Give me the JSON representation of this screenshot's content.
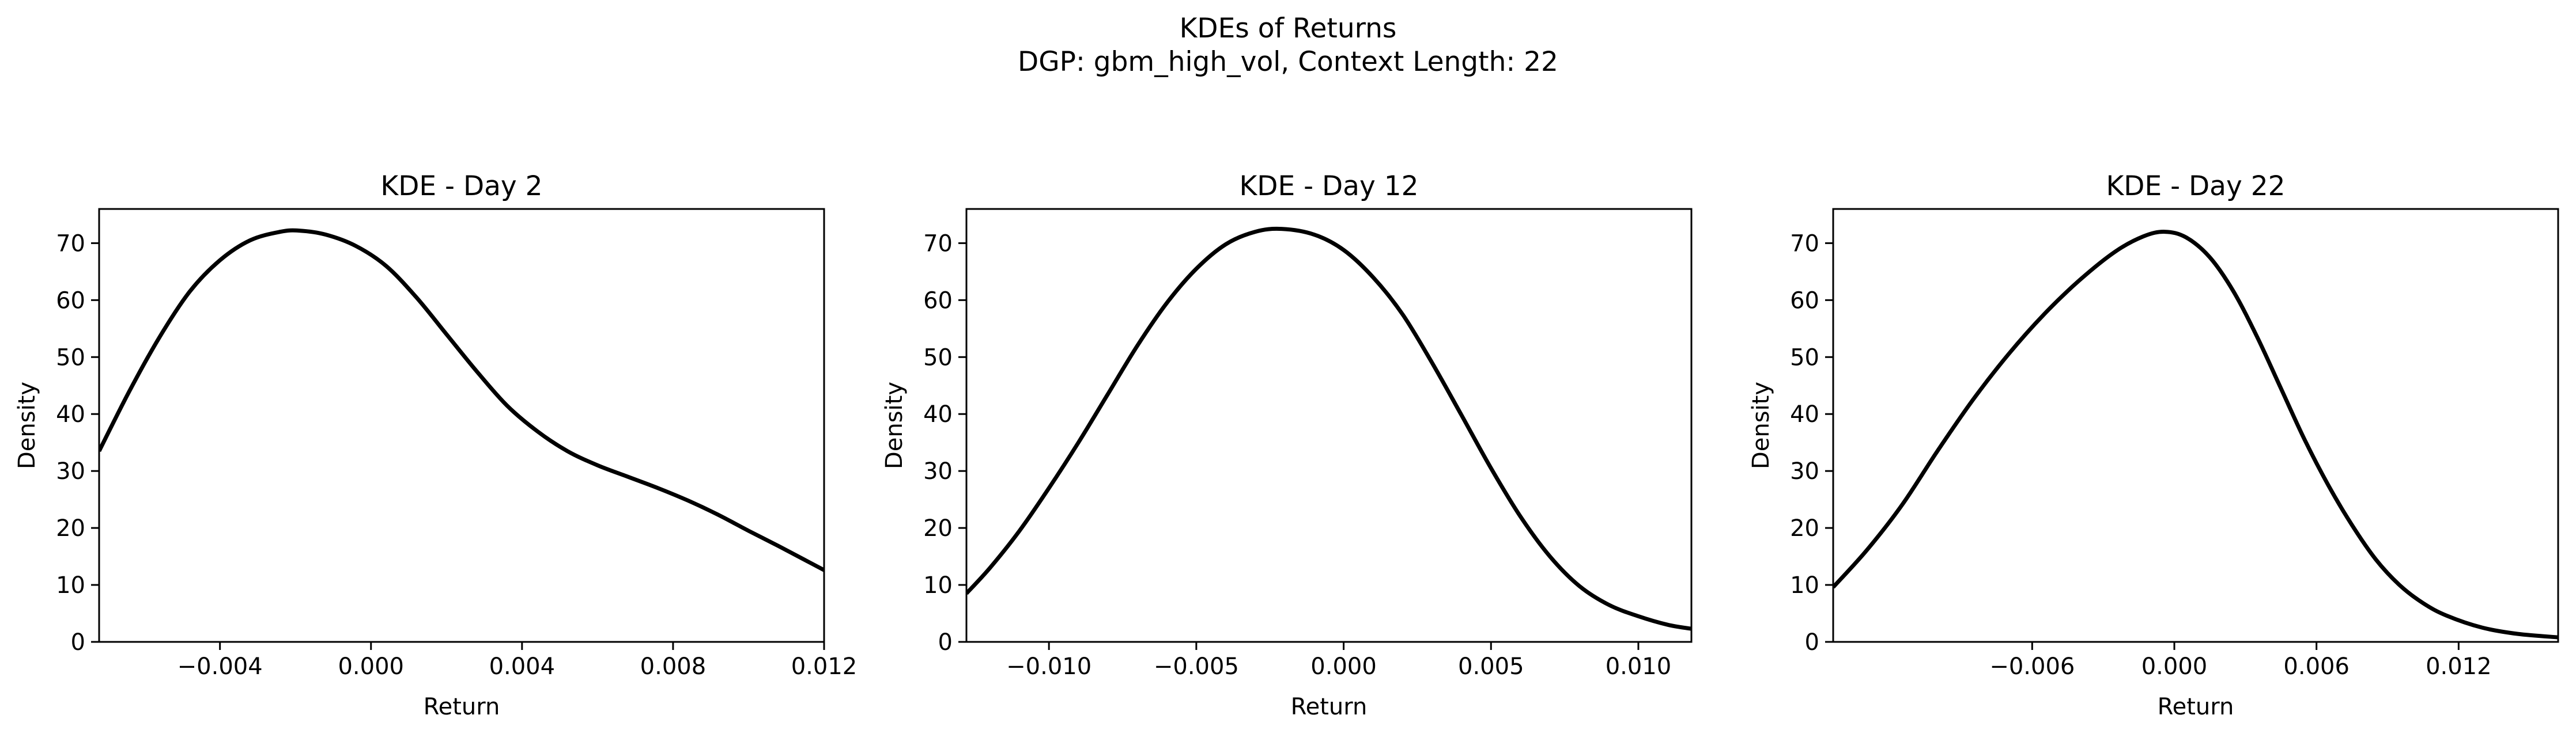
{
  "figure": {
    "title_line1": "KDEs of Returns",
    "title_line2": "DGP: gbm_high_vol, Context Length: 22"
  },
  "chart_data": [
    {
      "type": "line",
      "title": "KDE - Day 2",
      "xlabel": "Return",
      "ylabel": "Density",
      "xlim": [
        -0.0072,
        0.012
      ],
      "ylim": [
        0,
        76
      ],
      "xticks": [
        -0.004,
        0.0,
        0.004,
        0.008,
        0.012
      ],
      "xtick_labels": [
        "−0.004",
        "0.000",
        "0.004",
        "0.008",
        "0.012"
      ],
      "yticks": [
        0,
        10,
        20,
        30,
        40,
        50,
        60,
        70
      ],
      "ytick_labels": [
        "0",
        "10",
        "20",
        "30",
        "40",
        "50",
        "60",
        "70"
      ],
      "line_color": "#000000",
      "grid": false,
      "series": [
        {
          "x": [
            -0.0072,
            -0.0064,
            -0.0056,
            -0.0048,
            -0.004,
            -0.0032,
            -0.0024,
            -0.0019,
            -0.0012,
            -0.0004,
            0.0004,
            0.0012,
            0.002,
            0.0028,
            0.0036,
            0.0044,
            0.0052,
            0.006,
            0.0068,
            0.0076,
            0.0084,
            0.0092,
            0.01,
            0.0108,
            0.0116,
            0.012
          ],
          "y": [
            33.5,
            44.0,
            53.5,
            61.5,
            67.0,
            70.5,
            72.0,
            72.2,
            71.5,
            69.5,
            66.0,
            60.5,
            54.0,
            47.5,
            41.5,
            37.0,
            33.5,
            31.0,
            29.0,
            27.0,
            24.8,
            22.3,
            19.5,
            16.8,
            14.0,
            12.6
          ]
        }
      ]
    },
    {
      "type": "line",
      "title": "KDE - Day 12",
      "xlabel": "Return",
      "ylabel": "Density",
      "xlim": [
        -0.0128,
        0.0118
      ],
      "ylim": [
        0,
        76
      ],
      "xticks": [
        -0.01,
        -0.005,
        0.0,
        0.005,
        0.01
      ],
      "xtick_labels": [
        "−0.010",
        "−0.005",
        "0.000",
        "0.005",
        "0.010"
      ],
      "yticks": [
        0,
        10,
        20,
        30,
        40,
        50,
        60,
        70
      ],
      "ytick_labels": [
        "0",
        "10",
        "20",
        "30",
        "40",
        "50",
        "60",
        "70"
      ],
      "line_color": "#000000",
      "grid": false,
      "series": [
        {
          "x": [
            -0.0128,
            -0.012,
            -0.011,
            -0.01,
            -0.009,
            -0.008,
            -0.007,
            -0.006,
            -0.005,
            -0.004,
            -0.003,
            -0.0021,
            -0.001,
            0.0,
            0.001,
            0.002,
            0.003,
            0.004,
            0.005,
            0.006,
            0.007,
            0.008,
            0.009,
            0.01,
            0.011,
            0.0118
          ],
          "y": [
            8.5,
            13.0,
            19.5,
            27.0,
            35.0,
            43.5,
            52.0,
            59.5,
            65.5,
            69.8,
            72.0,
            72.5,
            71.5,
            68.8,
            64.0,
            57.5,
            49.0,
            39.8,
            30.5,
            22.0,
            15.0,
            9.8,
            6.5,
            4.5,
            3.0,
            2.3
          ]
        }
      ]
    },
    {
      "type": "line",
      "title": "KDE - Day 22",
      "xlabel": "Return",
      "ylabel": "Density",
      "xlim": [
        -0.0144,
        0.0162
      ],
      "ylim": [
        0,
        76
      ],
      "xticks": [
        -0.006,
        0.0,
        0.006,
        0.012
      ],
      "xtick_labels": [
        "−0.006",
        "0.000",
        "0.006",
        "0.012"
      ],
      "yticks": [
        0,
        10,
        20,
        30,
        40,
        50,
        60,
        70
      ],
      "ytick_labels": [
        "0",
        "10",
        "20",
        "30",
        "40",
        "50",
        "60",
        "70"
      ],
      "line_color": "#000000",
      "grid": false,
      "series": [
        {
          "x": [
            -0.0144,
            -0.013,
            -0.0115,
            -0.01,
            -0.0085,
            -0.007,
            -0.0055,
            -0.004,
            -0.0025,
            -0.0013,
            -0.0004,
            0.0005,
            0.0015,
            0.0025,
            0.0035,
            0.0045,
            0.0055,
            0.0065,
            0.0075,
            0.0085,
            0.0095,
            0.0105,
            0.0115,
            0.013,
            0.0145,
            0.0162
          ],
          "y": [
            9.6,
            16.0,
            24.0,
            33.5,
            42.5,
            50.5,
            57.5,
            63.5,
            68.5,
            71.2,
            72.0,
            71.0,
            67.5,
            61.5,
            53.5,
            44.5,
            35.5,
            27.5,
            20.5,
            14.5,
            10.0,
            6.8,
            4.6,
            2.5,
            1.4,
            0.8
          ]
        }
      ]
    }
  ]
}
